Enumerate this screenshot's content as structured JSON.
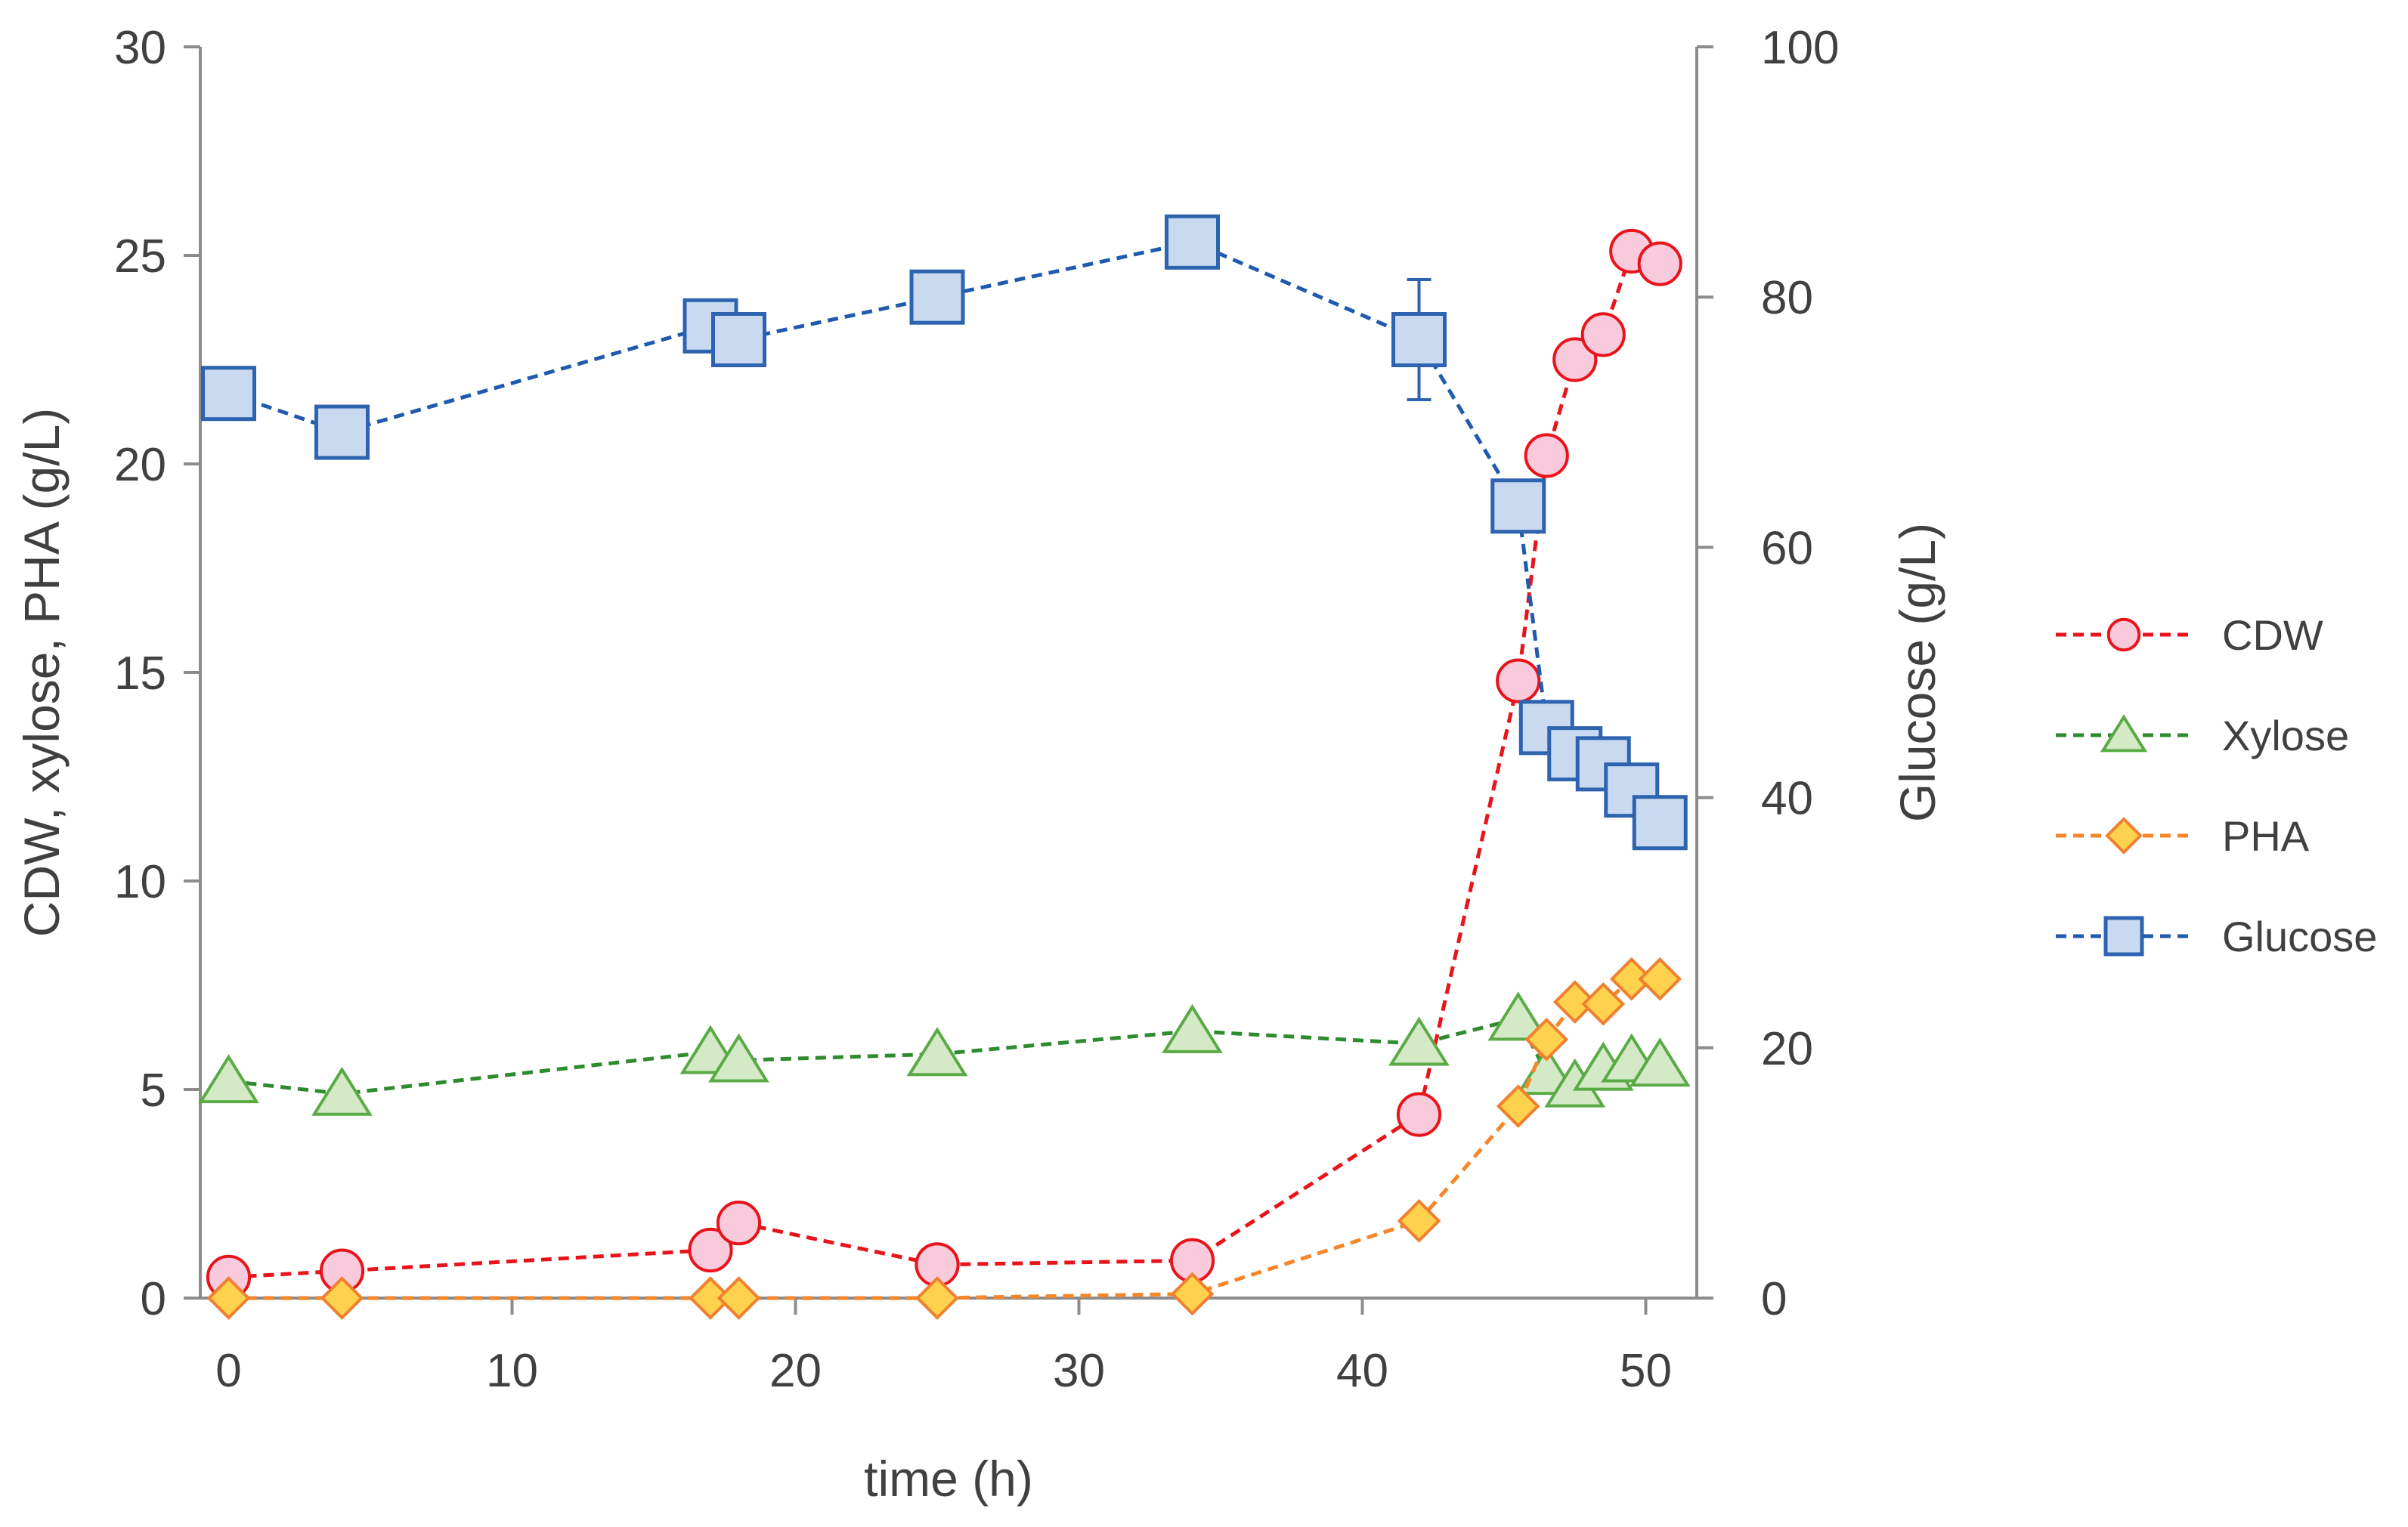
{
  "chart_data": {
    "type": "line",
    "title": "",
    "xlabel": "time (h)",
    "ylabel_left": "CDW, xylose, PHA (g/L)",
    "ylabel_right": "Glucose (g/L)",
    "xlim": [
      -1,
      51.8
    ],
    "ylim_left": [
      0,
      30
    ],
    "ylim_right": [
      0,
      100
    ],
    "x_ticks": [
      0,
      10,
      20,
      30,
      40,
      50
    ],
    "y_left_ticks": [
      0,
      5,
      10,
      15,
      20,
      25,
      30
    ],
    "y_right_ticks": [
      0,
      20,
      40,
      60,
      80,
      100
    ],
    "grid": false,
    "legend_position": "right",
    "series": [
      {
        "name": "CDW",
        "axis": "left",
        "marker": "circle",
        "line_color": "#E8141B",
        "marker_fill": "#F9C9DC",
        "marker_edge": "#E8141B",
        "points": [
          [
            0,
            0.5
          ],
          [
            4,
            0.65
          ],
          [
            17,
            1.15
          ],
          [
            18,
            1.8
          ],
          [
            25,
            0.8
          ],
          [
            34,
            0.9
          ],
          [
            42,
            4.4
          ],
          [
            45.5,
            14.8
          ],
          [
            46.5,
            20.2
          ],
          [
            47.5,
            22.5
          ],
          [
            48.5,
            23.1
          ],
          [
            49.5,
            25.1
          ],
          [
            50.5,
            24.8
          ]
        ],
        "error_bars": [
          {
            "x": 48.5,
            "err": 0.3
          }
        ]
      },
      {
        "name": "Xylose",
        "axis": "left",
        "marker": "triangle",
        "line_color": "#2E8B2E",
        "marker_fill": "#D4E9C6",
        "marker_edge": "#5AAA46",
        "points": [
          [
            0,
            5.2
          ],
          [
            4,
            4.9
          ],
          [
            17,
            5.9
          ],
          [
            18,
            5.7
          ],
          [
            25,
            5.85
          ],
          [
            34,
            6.4
          ],
          [
            42,
            6.1
          ],
          [
            45.5,
            6.7
          ],
          [
            46.5,
            5.4
          ],
          [
            47.5,
            5.1
          ],
          [
            48.5,
            5.5
          ],
          [
            49.5,
            5.7
          ],
          [
            50.5,
            5.6
          ]
        ],
        "error_bars": []
      },
      {
        "name": "PHA",
        "axis": "left",
        "marker": "diamond",
        "line_color": "#F5862A",
        "marker_fill": "#FFD24D",
        "marker_edge": "#F08030",
        "points": [
          [
            0,
            0
          ],
          [
            4,
            0
          ],
          [
            17,
            0
          ],
          [
            18,
            0
          ],
          [
            25,
            0
          ],
          [
            34,
            0.1
          ],
          [
            42,
            1.85
          ],
          [
            45.5,
            4.6
          ],
          [
            46.5,
            6.2
          ],
          [
            47.5,
            7.1
          ],
          [
            48.5,
            7.05
          ],
          [
            49.5,
            7.65
          ],
          [
            50.5,
            7.65
          ]
        ],
        "error_bars": []
      },
      {
        "name": "Glucose",
        "axis": "right",
        "marker": "square",
        "line_color": "#1F5AAE",
        "marker_fill": "#C9DAF0",
        "marker_edge": "#2E63B0",
        "points": [
          [
            0,
            72.3
          ],
          [
            4,
            69.2
          ],
          [
            17,
            77.7
          ],
          [
            18,
            76.6
          ],
          [
            25,
            80
          ],
          [
            34,
            84.4
          ],
          [
            42,
            76.6
          ],
          [
            45.5,
            63.3
          ],
          [
            46.5,
            45.6
          ],
          [
            47.5,
            43.5
          ],
          [
            48.5,
            42.7
          ],
          [
            49.5,
            40.6
          ],
          [
            50.5,
            38
          ]
        ],
        "error_bars": [
          {
            "x": 42,
            "err": 4.8
          }
        ]
      }
    ]
  }
}
